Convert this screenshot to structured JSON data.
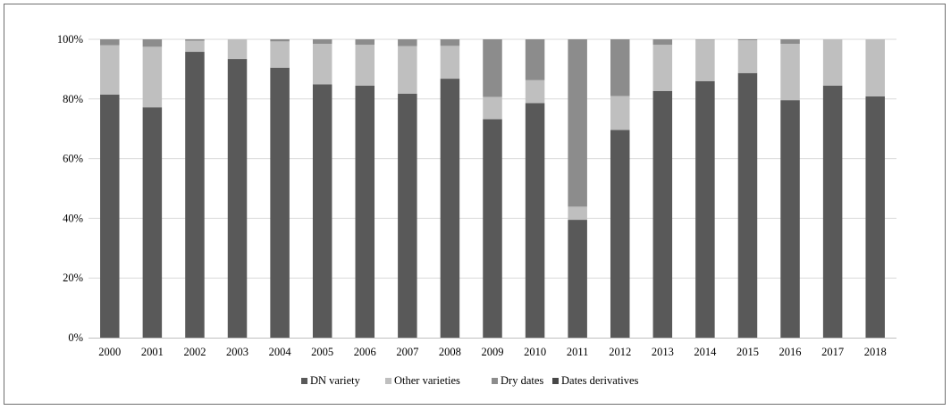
{
  "chart_data": {
    "type": "bar",
    "stacked": true,
    "percent": true,
    "categories": [
      "2000",
      "2001",
      "2002",
      "2003",
      "2004",
      "2005",
      "2006",
      "2007",
      "2008",
      "2009",
      "2010",
      "2011",
      "2012",
      "2013",
      "2014",
      "2015",
      "2016",
      "2017",
      "2018"
    ],
    "series": [
      {
        "name": "DN variety",
        "color": "#595959",
        "values": [
          81.5,
          77.2,
          95.8,
          93.4,
          90.5,
          84.9,
          84.5,
          81.8,
          86.8,
          73.2,
          78.6,
          39.5,
          69.6,
          82.7,
          86.0,
          88.7,
          79.6,
          84.5,
          80.9
        ]
      },
      {
        "name": "Other varieties",
        "color": "#bfbfbf",
        "values": [
          16.5,
          20.3,
          3.7,
          6.6,
          8.8,
          13.6,
          13.7,
          15.9,
          11.0,
          7.5,
          7.7,
          4.4,
          11.4,
          15.5,
          13.9,
          11.0,
          18.9,
          15.5,
          19.1
        ]
      },
      {
        "name": "Dry dates",
        "color": "#8c8c8c",
        "values": [
          2.0,
          2.5,
          0.5,
          0.0,
          0.7,
          1.5,
          1.8,
          2.3,
          2.2,
          19.3,
          13.7,
          56.1,
          19.0,
          1.8,
          0.1,
          0.3,
          1.5,
          0.0,
          0.0
        ]
      },
      {
        "name": "Dates derivatives",
        "color": "#474747",
        "values": [
          0,
          0,
          0,
          0,
          0,
          0,
          0,
          0,
          0,
          0,
          0,
          0,
          0,
          0,
          0,
          0,
          0,
          0,
          0
        ]
      }
    ],
    "y_ticks": [
      "0%",
      "20%",
      "40%",
      "60%",
      "80%",
      "100%"
    ],
    "ylim": [
      0,
      100
    ],
    "grid": true,
    "legend_position": "bottom"
  }
}
